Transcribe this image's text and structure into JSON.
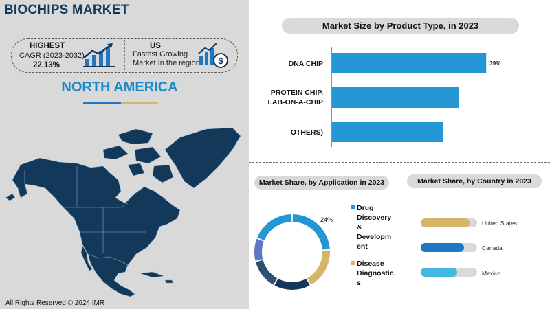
{
  "title": "BIOCHIPS MARKET",
  "stats": {
    "left_heading": "HIGHEST",
    "left_sub": "CAGR (2023-2032)",
    "left_value": "22.13%",
    "right_heading": "US",
    "right_line1": "Fastest Growing",
    "right_line2": "Market In the region"
  },
  "region": "NORTH AMERICA",
  "copyright": "All Rights Reserved © 2024 IMR",
  "colors": {
    "navy": "#12385a",
    "blue": "#2596d4",
    "gold": "#d6b56a",
    "light_blue": "#45b8df",
    "grey": "#d9d9d9"
  },
  "chart_data": [
    {
      "type": "bar",
      "orientation": "horizontal",
      "title": "Market Size by Product Type, in 2023",
      "categories": [
        "DNA CHIP",
        "PROTEIN CHIP, LAB-ON-A-CHIP",
        "OTHERS)"
      ],
      "category_lines": [
        [
          "DNA CHIP"
        ],
        [
          "PROTEIN CHIP,",
          "LAB-ON-A-CHIP"
        ],
        [
          "OTHERS)"
        ]
      ],
      "values": [
        39,
        32,
        28
      ],
      "data_labels": [
        "39%",
        "",
        ""
      ],
      "color": "#2596d4"
    },
    {
      "type": "pie",
      "donut": true,
      "title": "Market Share, by Application in 2023",
      "segments": [
        {
          "label": "Drug Discovery & Development",
          "value": 24,
          "color": "#2596d4"
        },
        {
          "label": "Disease Diagnostics",
          "value": 18,
          "color": "#d6b56a"
        },
        {
          "label": "",
          "value": 16,
          "color": "#12385a"
        },
        {
          "label": "",
          "value": 13,
          "color": "#2f4f73"
        },
        {
          "label": "",
          "value": 10,
          "color": "#5b79c4"
        },
        {
          "label": "",
          "value": 19,
          "color": "#2596d4"
        }
      ],
      "data_labels": [
        "24%"
      ],
      "legend": [
        {
          "lines": [
            "Drug",
            "Discovery",
            "&",
            "Developm",
            "ent"
          ],
          "color": "#2596d4"
        },
        {
          "lines": [
            "Disease",
            "Diagnostic",
            "s"
          ],
          "color": "#d6b56a"
        }
      ]
    },
    {
      "type": "bar",
      "orientation": "horizontal",
      "title": "Market Share, by Country in 2023",
      "categories": [
        "United States",
        "Canada",
        "Mexico"
      ],
      "values": [
        0.86,
        0.77,
        0.65
      ],
      "colors": [
        "#d6b56a",
        "#1f78c1",
        "#45b8df"
      ]
    }
  ]
}
